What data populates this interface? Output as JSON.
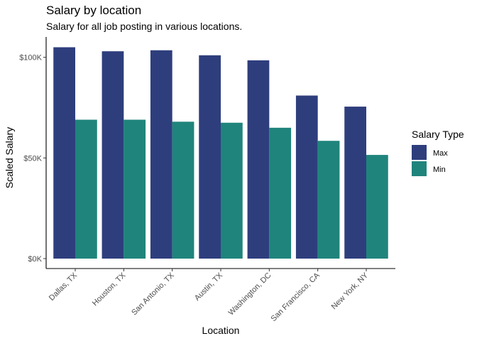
{
  "chart_data": {
    "type": "bar",
    "title": "Salary by location",
    "subtitle": "Salary for all job posting in various locations.",
    "xlabel": "Location",
    "ylabel": "Scaled Salary",
    "categories": [
      "Dallas, TX",
      "Houston, TX",
      "San Antonio, TX",
      "Austin, TX",
      "Washington, DC",
      "San Francisco, CA",
      "New York, NY"
    ],
    "series": [
      {
        "name": "Max",
        "color": "#2e3e7d",
        "values": [
          105000,
          103000,
          103500,
          101000,
          98500,
          81000,
          75500
        ]
      },
      {
        "name": "Min",
        "color": "#1f847c",
        "values": [
          69000,
          69000,
          68000,
          67500,
          65000,
          58500,
          51500
        ]
      }
    ],
    "ylim": [
      0,
      105000
    ],
    "yticks": [
      {
        "value": 0,
        "label": "$0K"
      },
      {
        "value": 50000,
        "label": "$50K"
      },
      {
        "value": 100000,
        "label": "$100K"
      }
    ],
    "legend": {
      "title": "Salary Type",
      "placement": "right"
    },
    "grid": false
  }
}
